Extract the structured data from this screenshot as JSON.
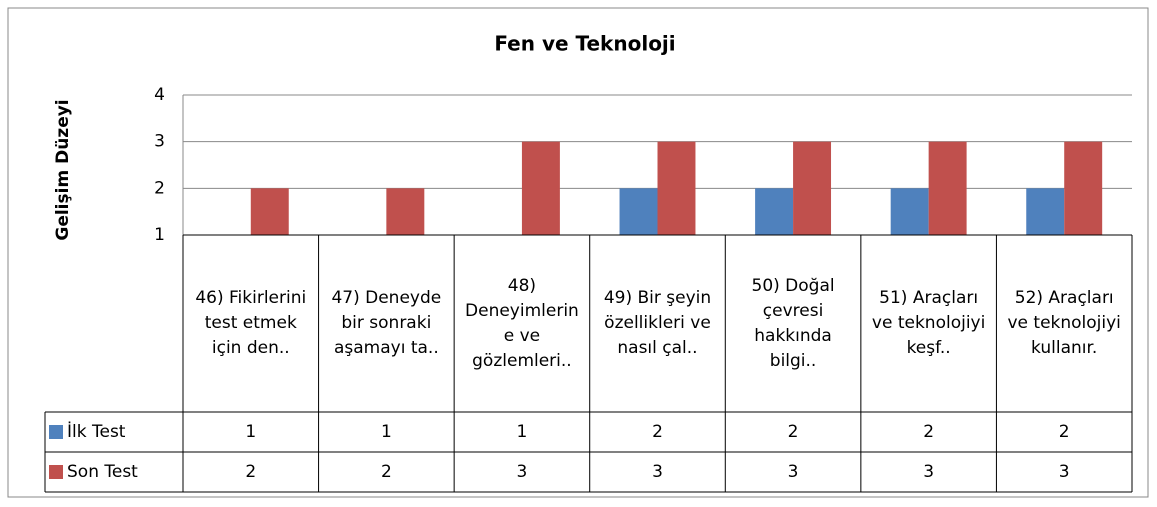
{
  "chart_data": {
    "type": "bar",
    "title": "Fen ve Teknoloji",
    "y_label": "Gelişim Düzeyi",
    "categories": [
      "46) Fikirlerini test etmek için den..",
      "47) Deneyde bir sonraki aşamayı ta..",
      "48) Deneyimlerine ve gözlemleri..",
      "49) Bir şeyin özellikleri ve nasıl çal..",
      "50) Doğal çevresi hakkında bilgi..",
      "51) Araçları ve teknolojiyi keşf..",
      "52) Araçları ve teknolojiyi kullanır."
    ],
    "series": [
      {
        "name": "İlk Test",
        "color": "#4f81bd",
        "values": [
          1,
          1,
          1,
          2,
          2,
          2,
          2
        ]
      },
      {
        "name": "Son Test",
        "color": "#c0504d",
        "values": [
          2,
          2,
          3,
          3,
          3,
          3,
          3
        ]
      }
    ],
    "ylim": [
      1,
      4
    ],
    "yticks": [
      1,
      2,
      3,
      4
    ],
    "grid": true
  }
}
